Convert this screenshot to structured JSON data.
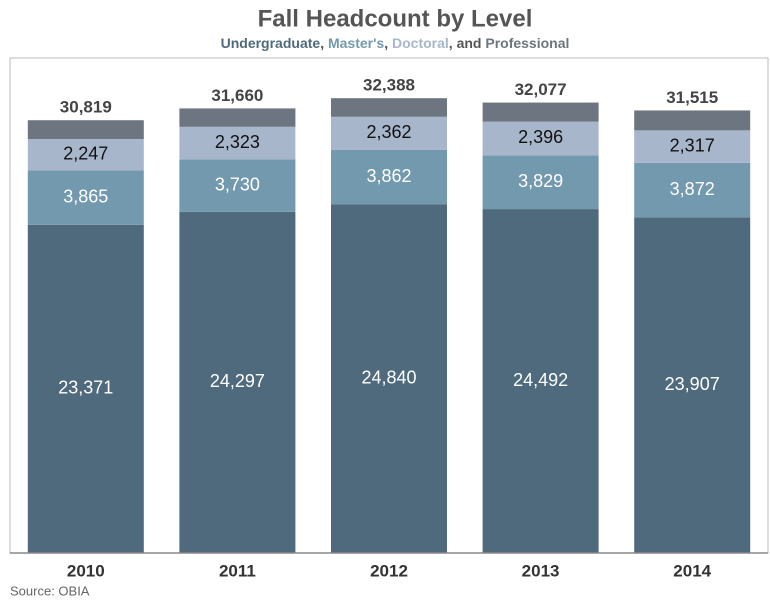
{
  "chart_data": {
    "type": "stacked_bar",
    "title": "Fall Headcount by Level",
    "legend_separators": [
      ", ",
      ", ",
      ", and "
    ],
    "categories": [
      "2010",
      "2011",
      "2012",
      "2013",
      "2014"
    ],
    "series": [
      {
        "name": "Undergraduate",
        "color": "#4f6a7c",
        "label_color": "#ffffff",
        "values": [
          23371,
          24297,
          24840,
          24492,
          23907
        ],
        "value_labels": [
          "23,371",
          "24,297",
          "24,840",
          "24,492",
          "23,907"
        ]
      },
      {
        "name": "Master's",
        "color": "#7399ae",
        "label_color": "#ffffff",
        "values": [
          3865,
          3730,
          3862,
          3829,
          3872
        ],
        "value_labels": [
          "3,865",
          "3,730",
          "3,862",
          "3,829",
          "3,872"
        ]
      },
      {
        "name": "Doctoral",
        "color": "#a8b6cc",
        "label_color": "#111111",
        "values": [
          2247,
          2323,
          2362,
          2396,
          2317
        ],
        "value_labels": [
          "2,247",
          "2,323",
          "2,362",
          "2,396",
          "2,317"
        ]
      },
      {
        "name": "Professional",
        "color": "#6d7680",
        "values": [
          1336,
          1310,
          1324,
          1360,
          1419
        ]
      }
    ],
    "totals": [
      30819,
      31660,
      32388,
      32077,
      31515
    ],
    "total_labels": [
      "30,819",
      "31,660",
      "32,388",
      "32,077",
      "31,515"
    ],
    "ylim": [
      0,
      35250
    ],
    "source": "Source: OBIA"
  }
}
